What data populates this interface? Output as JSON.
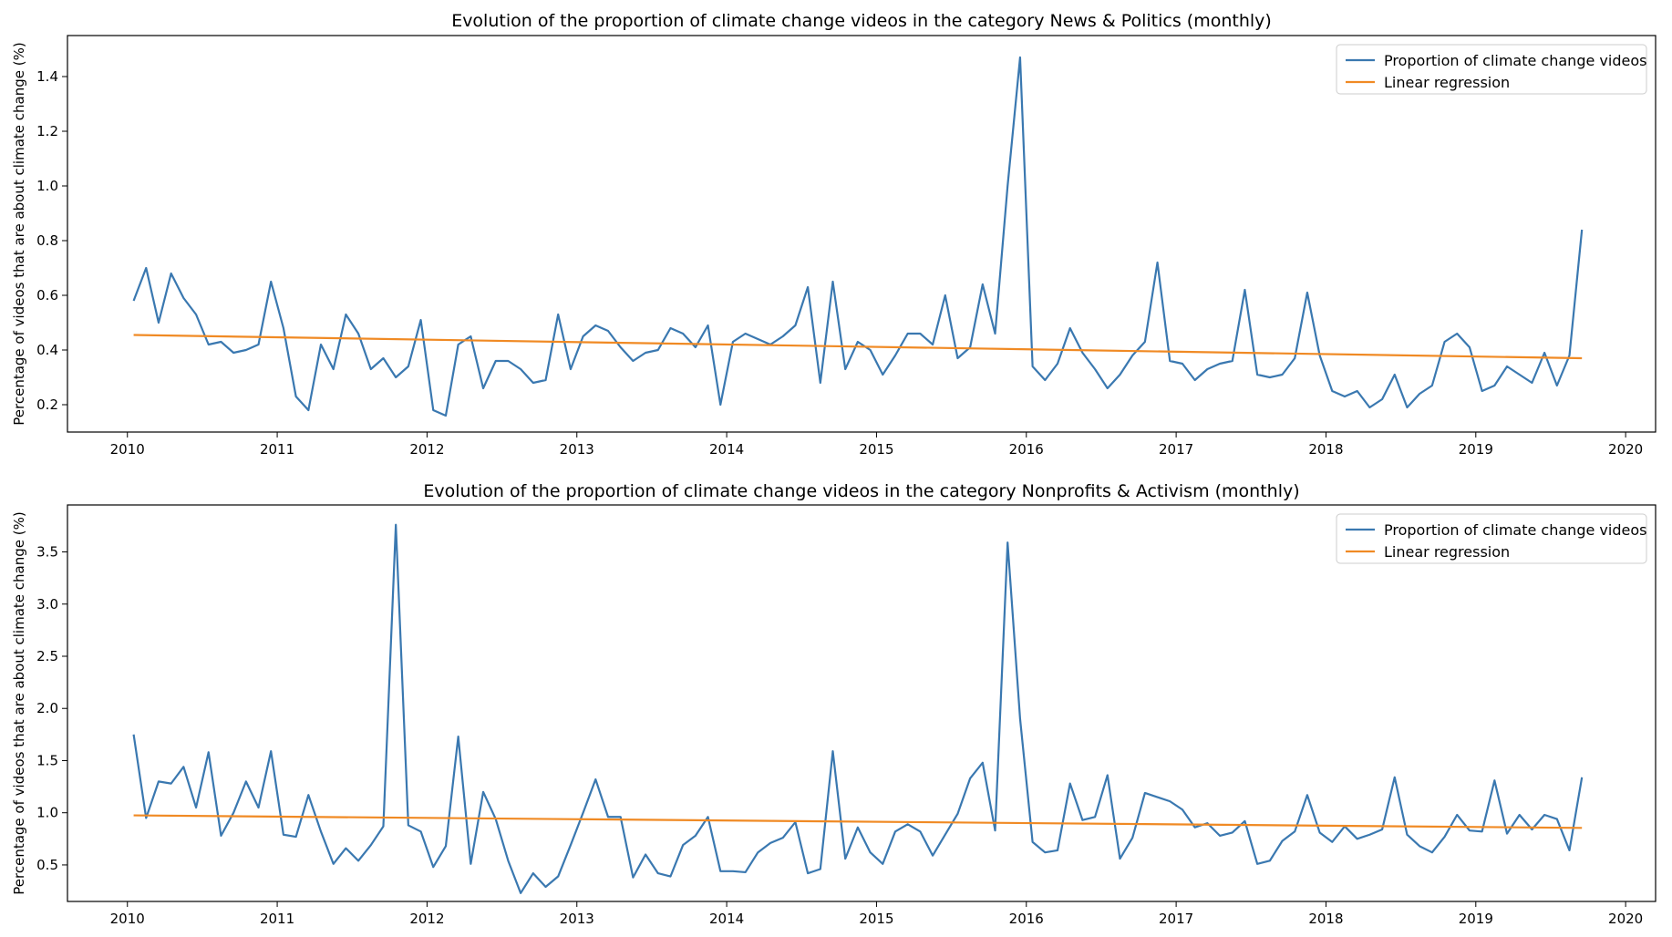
{
  "chart_data": [
    {
      "type": "line",
      "title": "Evolution of the proportion of climate change videos in the category News & Politics (monthly)",
      "xlabel": "",
      "ylabel": "Percentage of videos that are about climate change (%)",
      "xlim": [
        2009.6,
        2020.2
      ],
      "ylim": [
        0.1,
        1.55
      ],
      "xticks": [
        "2010",
        "2011",
        "2012",
        "2013",
        "2014",
        "2015",
        "2016",
        "2017",
        "2018",
        "2019",
        "2020"
      ],
      "yticks": [
        "0.2",
        "0.4",
        "0.6",
        "0.8",
        "1.0",
        "1.2",
        "1.4"
      ],
      "grid": false,
      "legend_position": "top-right",
      "start": [
        2010,
        1
      ],
      "series": [
        {
          "name": "Proportion of climate change videos",
          "color": "#3a78b0",
          "values": [
            0.58,
            0.7,
            0.5,
            0.68,
            0.59,
            0.53,
            0.42,
            0.43,
            0.39,
            0.4,
            0.42,
            0.65,
            0.48,
            0.23,
            0.18,
            0.42,
            0.33,
            0.53,
            0.46,
            0.33,
            0.37,
            0.3,
            0.34,
            0.51,
            0.18,
            0.16,
            0.42,
            0.45,
            0.26,
            0.36,
            0.36,
            0.33,
            0.28,
            0.29,
            0.53,
            0.33,
            0.45,
            0.49,
            0.47,
            0.41,
            0.36,
            0.39,
            0.4,
            0.48,
            0.46,
            0.41,
            0.49,
            0.2,
            0.43,
            0.46,
            0.44,
            0.42,
            0.45,
            0.49,
            0.63,
            0.28,
            0.65,
            0.33,
            0.43,
            0.4,
            0.31,
            0.38,
            0.46,
            0.46,
            0.42,
            0.6,
            0.37,
            0.41,
            0.64,
            0.46,
            1.0,
            1.47,
            0.34,
            0.29,
            0.35,
            0.48,
            0.39,
            0.33,
            0.26,
            0.31,
            0.38,
            0.43,
            0.72,
            0.36,
            0.35,
            0.29,
            0.33,
            0.35,
            0.36,
            0.62,
            0.31,
            0.3,
            0.31,
            0.37,
            0.61,
            0.38,
            0.25,
            0.23,
            0.25,
            0.19,
            0.22,
            0.31,
            0.19,
            0.24,
            0.27,
            0.43,
            0.46,
            0.41,
            0.25,
            0.27,
            0.34,
            0.31,
            0.28,
            0.39,
            0.27,
            0.38,
            0.84
          ]
        },
        {
          "name": "Linear regression",
          "color": "#f08a24",
          "values": [
            0.455,
            0.37
          ]
        }
      ]
    },
    {
      "type": "line",
      "title": "Evolution of the proportion of climate change videos in the category Nonprofits & Activism (monthly)",
      "xlabel": "",
      "ylabel": "Percentage of videos that are about climate change (%)",
      "xlim": [
        2009.6,
        2020.2
      ],
      "ylim": [
        0.15,
        3.95
      ],
      "xticks": [
        "2010",
        "2011",
        "2012",
        "2013",
        "2014",
        "2015",
        "2016",
        "2017",
        "2018",
        "2019",
        "2020"
      ],
      "yticks": [
        "0.5",
        "1.0",
        "1.5",
        "2.0",
        "2.5",
        "3.0",
        "3.5"
      ],
      "grid": false,
      "legend_position": "top-right",
      "start": [
        2010,
        1
      ],
      "series": [
        {
          "name": "Proportion of climate change videos",
          "color": "#3a78b0",
          "values": [
            1.75,
            0.95,
            1.3,
            1.28,
            1.44,
            1.05,
            1.58,
            0.78,
            1.0,
            1.3,
            1.05,
            1.59,
            0.79,
            0.77,
            1.17,
            0.82,
            0.51,
            0.66,
            0.54,
            0.69,
            0.87,
            3.76,
            0.88,
            0.82,
            0.48,
            0.68,
            1.73,
            0.51,
            1.2,
            0.94,
            0.54,
            0.23,
            0.42,
            0.29,
            0.39,
            0.69,
            1.0,
            1.32,
            0.96,
            0.96,
            0.38,
            0.6,
            0.42,
            0.39,
            0.69,
            0.78,
            0.96,
            0.44,
            0.44,
            0.43,
            0.62,
            0.71,
            0.76,
            0.91,
            0.42,
            0.46,
            1.59,
            0.56,
            0.86,
            0.62,
            0.51,
            0.82,
            0.89,
            0.82,
            0.59,
            0.79,
            0.99,
            1.33,
            1.48,
            0.83,
            3.59,
            1.9,
            0.72,
            0.62,
            0.64,
            1.28,
            0.93,
            0.96,
            1.36,
            0.56,
            0.76,
            1.19,
            1.15,
            1.11,
            1.03,
            0.86,
            0.9,
            0.78,
            0.81,
            0.92,
            0.51,
            0.54,
            0.73,
            0.82,
            1.17,
            0.81,
            0.72,
            0.87,
            0.75,
            0.79,
            0.84,
            1.34,
            0.79,
            0.68,
            0.62,
            0.77,
            0.98,
            0.83,
            0.82,
            1.31,
            0.8,
            0.98,
            0.84,
            0.98,
            0.94,
            0.64,
            1.34
          ]
        },
        {
          "name": "Linear regression",
          "color": "#f08a24",
          "values": [
            0.975,
            0.855
          ]
        }
      ]
    }
  ]
}
